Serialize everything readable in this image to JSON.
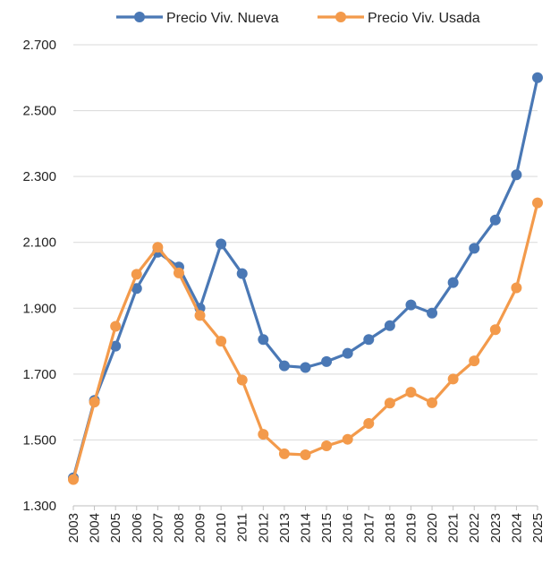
{
  "chart_data": {
    "type": "line",
    "title": "",
    "xlabel": "",
    "ylabel": "",
    "x": [
      "2003",
      "2004",
      "2005",
      "2006",
      "2007",
      "2008",
      "2009",
      "2010",
      "2011",
      "2012",
      "2013",
      "2014",
      "2015",
      "2016",
      "2017",
      "2018",
      "2019",
      "2020",
      "2021",
      "2022",
      "2023",
      "2024",
      "2025"
    ],
    "ylim": [
      1300,
      2700
    ],
    "yticks": [
      1300,
      1500,
      1700,
      1900,
      2100,
      2300,
      2500,
      2700
    ],
    "ytick_labels": [
      "1.300",
      "1.500",
      "1.700",
      "1.900",
      "2.100",
      "2.300",
      "2.500",
      "2.700"
    ],
    "grid": "horizontal",
    "legend": "top",
    "series": [
      {
        "name": "Precio Viv. Nueva",
        "color": "#4a78b5",
        "values": [
          1385,
          1620,
          1785,
          1960,
          2070,
          2025,
          1900,
          2095,
          2005,
          1805,
          1725,
          1720,
          1738,
          1763,
          1805,
          1847,
          1910,
          1885,
          1978,
          2082,
          2168,
          2305,
          2600
        ]
      },
      {
        "name": "Precio Viv. Usada",
        "color": "#f39a4b",
        "values": [
          1380,
          1615,
          1845,
          2003,
          2085,
          2007,
          1878,
          1800,
          1682,
          1517,
          1458,
          1455,
          1482,
          1502,
          1550,
          1612,
          1645,
          1613,
          1685,
          1740,
          1835,
          1962,
          2220
        ]
      }
    ]
  }
}
